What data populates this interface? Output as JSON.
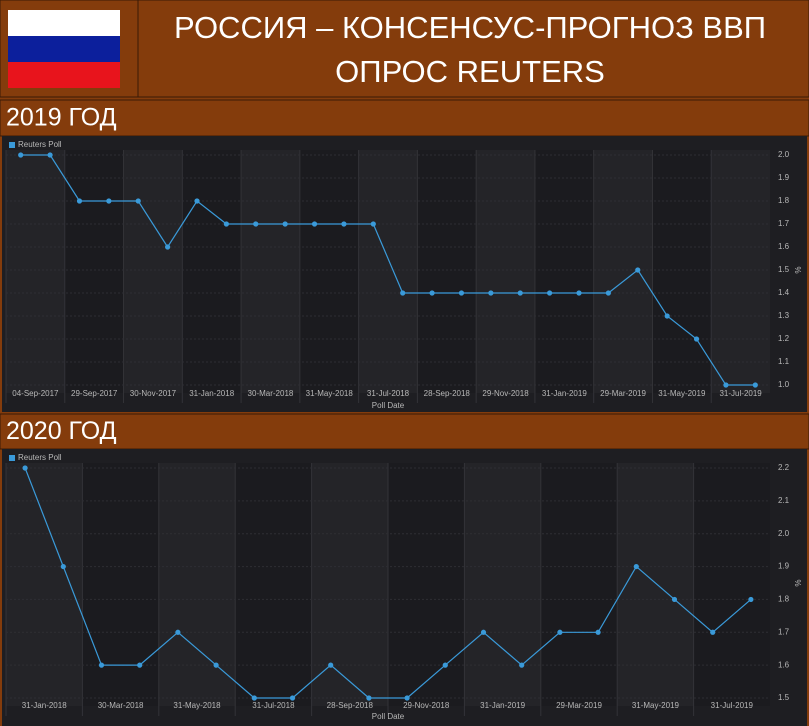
{
  "header": {
    "title": [
      "РОССИЯ – КОНСЕНСУС-ПРОГНОЗ ВВП",
      "ОПРОС REUTERS"
    ]
  },
  "chart_data": [
    {
      "type": "line",
      "title": "2019 ГОД",
      "x_label": "Poll Date",
      "y_label": "%",
      "categories": [
        "04-Sep-2017",
        null,
        "29-Sep-2017",
        null,
        "30-Nov-2017",
        null,
        "31-Jan-2018",
        null,
        "30-Mar-2018",
        null,
        "31-May-2018",
        null,
        "31-Jul-2018",
        null,
        "28-Sep-2018",
        null,
        "29-Nov-2018",
        null,
        "31-Jan-2019",
        null,
        "29-Mar-2019",
        null,
        "31-May-2019",
        null,
        "31-Jul-2019",
        null
      ],
      "series": [
        {
          "name": "Reuters Poll",
          "color": "#3a9ad9",
          "values": [
            2.0,
            2.0,
            1.8,
            1.8,
            1.8,
            1.6,
            1.8,
            1.7,
            1.7,
            1.7,
            1.7,
            1.7,
            1.7,
            1.4,
            1.4,
            1.4,
            1.4,
            1.4,
            1.4,
            1.4,
            1.4,
            1.5,
            1.3,
            1.2,
            1.0,
            1.0
          ]
        }
      ],
      "ylim": [
        1.0,
        2.0
      ],
      "yticks": [
        {
          "value": 1.0,
          "label": "1.0"
        },
        1.1,
        1.2,
        1.3,
        1.4,
        1.5,
        1.6,
        1.7,
        1.8,
        1.9,
        {
          "value": 2.0,
          "label": "2.0"
        }
      ],
      "legend": "top-left"
    },
    {
      "type": "line",
      "title": "2020 ГОД",
      "x_label": "Poll Date",
      "y_label": "%",
      "categories": [
        "31-Jan-2018",
        null,
        "30-Mar-2018",
        null,
        "31-May-2018",
        null,
        "31-Jul-2018",
        null,
        "28-Sep-2018",
        null,
        "29-Nov-2018",
        null,
        "31-Jan-2019",
        null,
        "29-Mar-2019",
        null,
        "31-May-2019",
        null,
        "31-Jul-2019",
        null
      ],
      "series": [
        {
          "name": "Reuters Poll",
          "color": "#3a9ad9",
          "values": [
            2.2,
            1.9,
            1.6,
            1.6,
            1.7,
            1.6,
            1.5,
            1.5,
            1.6,
            1.5,
            1.5,
            1.6,
            1.7,
            1.6,
            1.7,
            1.7,
            1.9,
            1.8,
            1.7,
            1.8
          ]
        }
      ],
      "ylim": [
        1.5,
        2.2
      ],
      "yticks": [
        1.5,
        1.6,
        1.7,
        1.8,
        1.9,
        {
          "value": 2.0,
          "label": "2.0"
        },
        2.1,
        2.2
      ],
      "legend": "top-left"
    }
  ]
}
